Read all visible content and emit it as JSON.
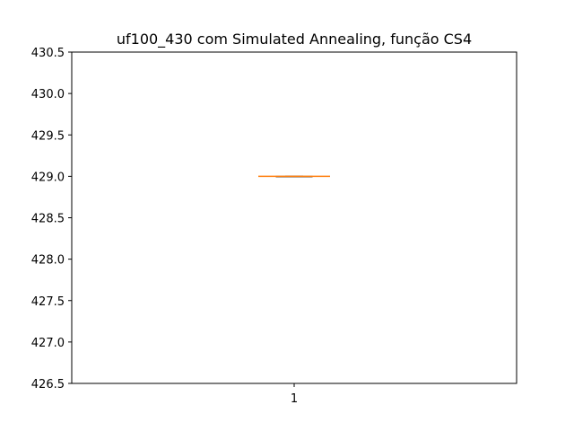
{
  "chart_data": {
    "type": "box",
    "title": "uf100_430 com Simulated Annealing, função CS4",
    "xlabel": "",
    "ylabel": "",
    "categories": [
      "1"
    ],
    "boxes": [
      {
        "label": "1",
        "min": 429.0,
        "q1": 429.0,
        "median": 429.0,
        "q3": 429.0,
        "max": 429.0
      }
    ],
    "ylim": [
      426.5,
      430.5
    ],
    "yticks": [
      {
        "value": 426.5,
        "label": "426.5"
      },
      {
        "value": 427.0,
        "label": "427.0"
      },
      {
        "value": 427.5,
        "label": "427.5"
      },
      {
        "value": 428.0,
        "label": "428.0"
      },
      {
        "value": 428.5,
        "label": "428.5"
      },
      {
        "value": 429.0,
        "label": "429.0"
      },
      {
        "value": 429.5,
        "label": "429.5"
      },
      {
        "value": 430.0,
        "label": "430.0"
      },
      {
        "value": 430.5,
        "label": "430.5"
      }
    ],
    "xticks": [
      {
        "value": 1,
        "label": "1"
      }
    ],
    "grid": false,
    "colors": {
      "box": "#000000",
      "median": "#ff7f0e",
      "axes": "#000000"
    }
  }
}
